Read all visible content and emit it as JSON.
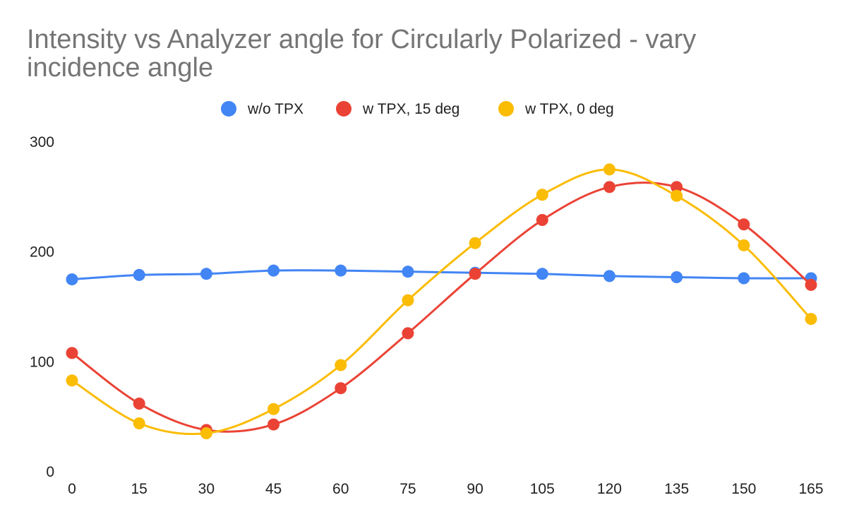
{
  "chart_data": {
    "type": "line",
    "title_lines": [
      "Intensity vs Analyzer angle for Circularly Polarized - vary",
      "incidence angle"
    ],
    "xlabel": "",
    "ylabel": "",
    "x": [
      0,
      15,
      30,
      45,
      60,
      75,
      90,
      105,
      120,
      135,
      150,
      165
    ],
    "x_tick_labels": [
      "0",
      "15",
      "30",
      "45",
      "60",
      "75",
      "90",
      "105",
      "120",
      "135",
      "150",
      "165"
    ],
    "y_tick_labels": [
      "0",
      "100",
      "200",
      "300"
    ],
    "ylim": [
      0,
      300
    ],
    "grid": false,
    "smooth": true,
    "legend_position": "top",
    "series": [
      {
        "name": "w/o TPX",
        "color": "#4285F4",
        "values": [
          175,
          179,
          180,
          183,
          183,
          182,
          181,
          180,
          178,
          177,
          176,
          176
        ]
      },
      {
        "name": "w TPX, 15 deg",
        "color": "#EA4335",
        "values": [
          108,
          62,
          38,
          43,
          76,
          126,
          180,
          229,
          259,
          259,
          225,
          170
        ]
      },
      {
        "name": "w TPX, 0 deg",
        "color": "#FBBC04",
        "values": [
          83,
          44,
          35,
          57,
          97,
          156,
          208,
          252,
          275,
          251,
          206,
          139
        ]
      }
    ]
  }
}
